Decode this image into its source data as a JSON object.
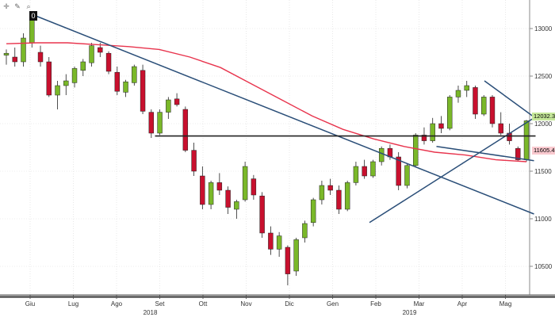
{
  "toolbar": {
    "icons": [
      "crosshair-icon",
      "pencil-icon",
      "zoom-icon"
    ],
    "badge": "0"
  },
  "price_tags": {
    "upper": "12032.32035",
    "lower": "11605.41136"
  },
  "colors": {
    "up_candle": "#7ab829",
    "down_candle": "#c8102e",
    "moving_average": "#e8344d",
    "trendline": "#2a4e78",
    "horizontal_support": "#222222",
    "grid": "#d9d9d9",
    "upper_tag_bg": "#c6e89a",
    "lower_tag_bg": "#f9c9cf"
  },
  "chart_data": {
    "type": "candlestick",
    "title": "",
    "xlabel": "",
    "ylabel": "",
    "x_ticks": [
      "Giu",
      "Lug",
      "Ago",
      "Set",
      "Ott",
      "Nov",
      "Dic",
      "Gen",
      "Feb",
      "Mar",
      "Apr",
      "Mag"
    ],
    "x_year_labels": [
      {
        "label": "2018",
        "month": "Set"
      },
      {
        "label": "2019",
        "month": "Mar"
      }
    ],
    "y_ticks": [
      10500,
      11000,
      11500,
      12000,
      12500,
      13000
    ],
    "ylim": [
      10200,
      13300
    ],
    "grid": true,
    "series": [
      {
        "values": [
          [
            12720,
            12780,
            12620,
            12740
          ],
          [
            12700,
            12800,
            12600,
            12650
          ],
          [
            12650,
            12950,
            12600,
            12900
          ],
          [
            12850,
            13150,
            12800,
            13100
          ],
          [
            12750,
            12820,
            12600,
            12650
          ],
          [
            12650,
            12700,
            12280,
            12300
          ],
          [
            12300,
            12450,
            12150,
            12400
          ],
          [
            12400,
            12520,
            12300,
            12450
          ],
          [
            12430,
            12600,
            12380,
            12580
          ],
          [
            12560,
            12680,
            12500,
            12650
          ],
          [
            12640,
            12850,
            12600,
            12820
          ],
          [
            12800,
            12850,
            12700,
            12750
          ],
          [
            12740,
            12760,
            12520,
            12550
          ],
          [
            12540,
            12600,
            12300,
            12340
          ],
          [
            12330,
            12460,
            12280,
            12440
          ],
          [
            12430,
            12620,
            12400,
            12600
          ],
          [
            12560,
            12620,
            12100,
            12130
          ],
          [
            12120,
            12150,
            11850,
            11900
          ],
          [
            11900,
            12150,
            11880,
            12120
          ],
          [
            12120,
            12280,
            12050,
            12250
          ],
          [
            12260,
            12320,
            12180,
            12200
          ],
          [
            12150,
            12180,
            11700,
            11720
          ],
          [
            11720,
            11800,
            11450,
            11500
          ],
          [
            11450,
            11550,
            11100,
            11150
          ],
          [
            11150,
            11400,
            11100,
            11380
          ],
          [
            11380,
            11480,
            11250,
            11300
          ],
          [
            11300,
            11340,
            11050,
            11120
          ],
          [
            11100,
            11200,
            11000,
            11180
          ],
          [
            11200,
            11600,
            11180,
            11550
          ],
          [
            11420,
            11460,
            11200,
            11250
          ],
          [
            11240,
            11280,
            10800,
            10850
          ],
          [
            10850,
            10920,
            10620,
            10680
          ],
          [
            10680,
            10860,
            10600,
            10820
          ],
          [
            10700,
            10720,
            10300,
            10420
          ],
          [
            10450,
            10800,
            10400,
            10780
          ],
          [
            10800,
            10980,
            10750,
            10950
          ],
          [
            10960,
            11220,
            10920,
            11200
          ],
          [
            11200,
            11400,
            11150,
            11350
          ],
          [
            11350,
            11420,
            11250,
            11300
          ],
          [
            11300,
            11350,
            11050,
            11100
          ],
          [
            11100,
            11400,
            11080,
            11380
          ],
          [
            11380,
            11600,
            11350,
            11550
          ],
          [
            11550,
            11620,
            11420,
            11450
          ],
          [
            11450,
            11620,
            11430,
            11600
          ],
          [
            11600,
            11760,
            11560,
            11740
          ],
          [
            11740,
            11780,
            11620,
            11650
          ],
          [
            11650,
            11700,
            11300,
            11350
          ],
          [
            11350,
            11580,
            11320,
            11560
          ],
          [
            11560,
            11900,
            11540,
            11880
          ],
          [
            11880,
            11960,
            11780,
            11820
          ],
          [
            11820,
            12060,
            11800,
            12000
          ],
          [
            12000,
            12080,
            11900,
            11950
          ],
          [
            11950,
            12300,
            11930,
            12280
          ],
          [
            12280,
            12400,
            12220,
            12350
          ],
          [
            12350,
            12450,
            12280,
            12400
          ],
          [
            12380,
            12400,
            12050,
            12100
          ],
          [
            12100,
            12300,
            12080,
            12280
          ],
          [
            12280,
            12300,
            11960,
            12000
          ],
          [
            12000,
            12120,
            11880,
            11900
          ],
          [
            11900,
            12000,
            11780,
            11820
          ],
          [
            11740,
            11760,
            11600,
            11620
          ],
          [
            11620,
            12040,
            11600,
            12030
          ]
        ]
      },
      {
        "name": "",
        "values": [
          12840,
          12850,
          12850,
          12830,
          12810,
          12780,
          12700,
          12590,
          12420,
          12250,
          12080,
          11940,
          11840,
          11760,
          11700,
          11670,
          11620,
          11600
        ]
      }
    ],
    "annotations": [
      {
        "type": "trendline",
        "from": [
          "Giu",
          13150
        ],
        "to": [
          "Mag",
          11050
        ]
      },
      {
        "type": "trendline",
        "from": [
          "Feb",
          10960
        ],
        "to": [
          "Mag",
          12060
        ]
      },
      {
        "type": "trendline",
        "from": [
          "Apr",
          12450
        ],
        "to": [
          "Mag",
          12070
        ]
      },
      {
        "type": "trendline",
        "from": [
          "Mar",
          11760
        ],
        "to": [
          "Mag",
          11610
        ]
      },
      {
        "type": "horizontal",
        "value": 11870,
        "from": "Set",
        "to": "Mag"
      }
    ]
  }
}
